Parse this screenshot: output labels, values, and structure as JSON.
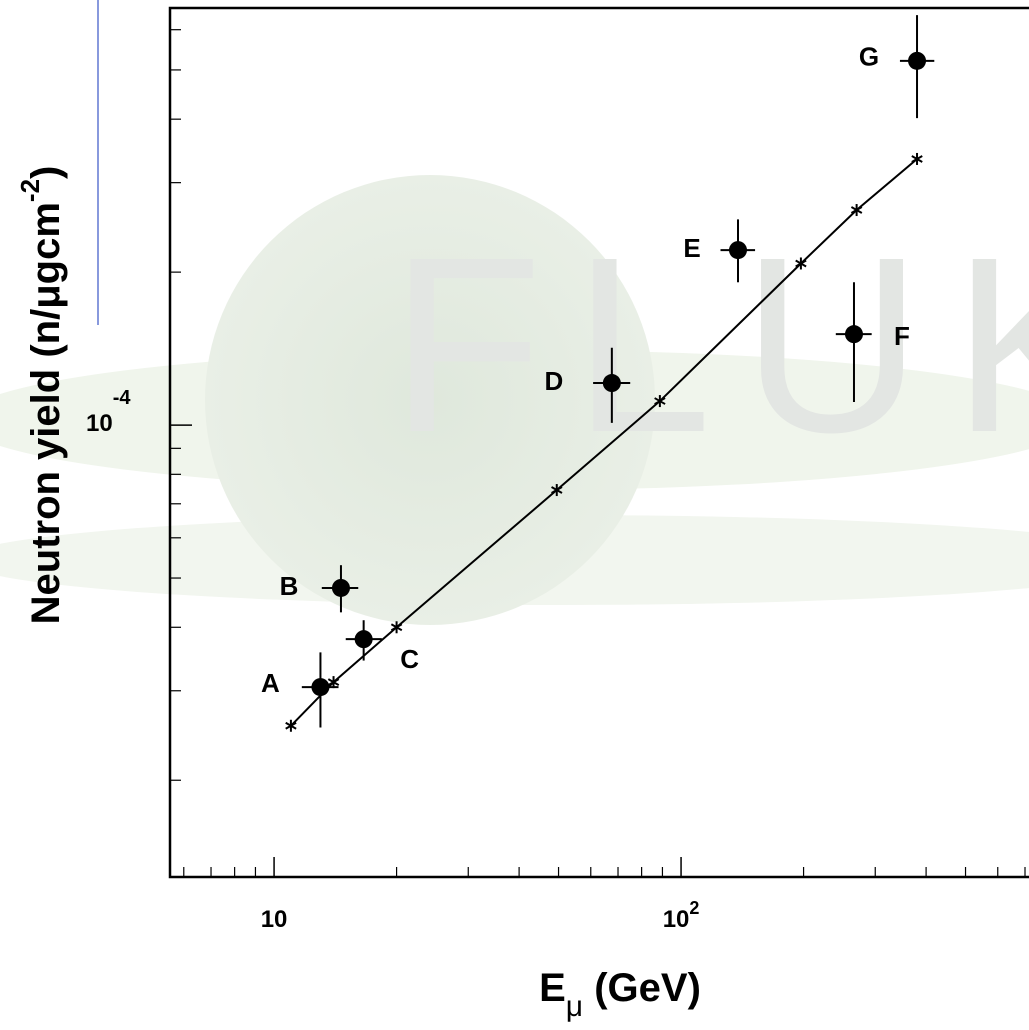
{
  "chart_data": {
    "type": "scatter",
    "watermark": "FLUKA",
    "x_label": {
      "main": "E",
      "sub": "μ",
      "rest": " (GeV)"
    },
    "y_label": {
      "main": "Neutron yield (n/μgcm",
      "sup": "-2",
      "end": ")"
    },
    "log_x": true,
    "log_y": true,
    "xlim": [
      5.55,
      716
    ],
    "ylim": [
      1.29e-05,
      0.000662
    ],
    "xticks": [
      {
        "value": 10,
        "label": "10"
      },
      {
        "value": 100,
        "label": "10",
        "exponent": "2"
      }
    ],
    "xminor_ticks": [
      6,
      7,
      8,
      9,
      20,
      30,
      40,
      50,
      60,
      70,
      80,
      90,
      200,
      300,
      400,
      500,
      600,
      700
    ],
    "yticks": [
      {
        "value": 0.0001,
        "label": "10",
        "exponent": "-4"
      }
    ],
    "yminor_ticks": [
      2e-05,
      3e-05,
      4e-05,
      5e-05,
      6e-05,
      7e-05,
      8e-05,
      9e-05,
      0.0002,
      0.0003,
      0.0004,
      0.0005,
      0.0006
    ],
    "color": "#000000",
    "points": [
      {
        "label": "A",
        "x": 13.0,
        "y": 3.05e-05,
        "x_low": 11.7,
        "x_high": 14.4,
        "y_low": 2.54e-05,
        "y_high": 3.57e-05
      },
      {
        "label": "B",
        "x": 14.6,
        "y": 4.78e-05,
        "x_low": 13.1,
        "x_high": 16.1,
        "y_low": 4.28e-05,
        "y_high": 5.3e-05
      },
      {
        "label": "C",
        "x": 16.6,
        "y": 3.79e-05,
        "x_low": 15.0,
        "x_high": 18.4,
        "y_low": 3.44e-05,
        "y_high": 4.13e-05
      },
      {
        "label": "D",
        "x": 67.6,
        "y": 0.000121,
        "x_low": 60.8,
        "x_high": 75.0,
        "y_low": 0.000101,
        "y_high": 0.000142
      },
      {
        "label": "E",
        "x": 138,
        "y": 0.000221,
        "x_low": 125,
        "x_high": 152,
        "y_low": 0.000191,
        "y_high": 0.000254
      },
      {
        "label": "F",
        "x": 266,
        "y": 0.000151,
        "x_low": 240,
        "x_high": 294,
        "y_low": 0.000111,
        "y_high": 0.000191
      },
      {
        "label": "G",
        "x": 380,
        "y": 0.000521,
        "x_low": 345,
        "x_high": 419,
        "y_low": 0.000402,
        "y_high": 0.000641
      }
    ],
    "simulation": {
      "x": [
        11.0,
        14.0,
        20.0,
        49.5,
        88.7,
        197,
        270,
        380
      ],
      "y": [
        2.56e-05,
        3.12e-05,
        4e-05,
        7.45e-05,
        0.0001115,
        0.000208,
        0.000265,
        0.000334
      ]
    }
  }
}
